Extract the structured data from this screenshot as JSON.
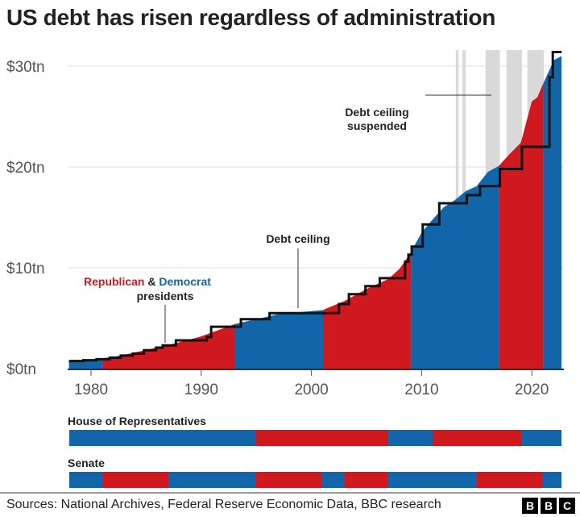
{
  "title": "US debt has risen regardless of administration",
  "chart_data": {
    "type": "area",
    "title": "US debt has risen regardless of administration",
    "ylabel": "",
    "xlabel": "",
    "xlim": [
      1978,
      2022.7
    ],
    "ylim": [
      0,
      30
    ],
    "grid": true,
    "y_ticks": [
      "$0tn",
      "$10tn",
      "$20tn",
      "$30tn"
    ],
    "y_tick_values": [
      0,
      10,
      20,
      30
    ],
    "x_ticks": [
      "1980",
      "1990",
      "2000",
      "2010",
      "2020"
    ],
    "x_tick_values": [
      1980,
      1990,
      2000,
      2010,
      2020
    ],
    "colors": {
      "Republican": "#d0181f",
      "Democrat": "#1165a8",
      "ceiling": "#111111",
      "suspended": "#d9d9d9"
    },
    "debt_series": {
      "x": [
        1978,
        1980,
        1982,
        1984,
        1986,
        1988,
        1990,
        1992,
        1993,
        1995,
        1997,
        1999,
        2001,
        2003,
        2005,
        2007,
        2008,
        2009,
        2010,
        2011,
        2012,
        2013,
        2014,
        2015,
        2016,
        2017,
        2018,
        2019,
        2020,
        2020.5,
        2021,
        2022,
        2022.7
      ],
      "y": [
        0.75,
        0.9,
        1.15,
        1.6,
        2.1,
        2.6,
        3.2,
        4.0,
        4.4,
        4.9,
        5.4,
        5.6,
        5.8,
        6.7,
        7.9,
        8.9,
        9.9,
        11.5,
        13.5,
        14.8,
        16.0,
        16.7,
        17.6,
        18.1,
        19.5,
        20.1,
        21.3,
        22.4,
        26.5,
        26.9,
        28.2,
        30.6,
        31.0
      ]
    },
    "presidents": [
      {
        "party": "Democrat",
        "start": 1978,
        "end": 1981.05
      },
      {
        "party": "Republican",
        "start": 1981.05,
        "end": 1993.05
      },
      {
        "party": "Democrat",
        "start": 1993.05,
        "end": 2001.05
      },
      {
        "party": "Republican",
        "start": 2001.05,
        "end": 2009.05
      },
      {
        "party": "Democrat",
        "start": 2009.05,
        "end": 2017.05
      },
      {
        "party": "Republican",
        "start": 2017.05,
        "end": 2021.05
      },
      {
        "party": "Democrat",
        "start": 2021.05,
        "end": 2022.7
      }
    ],
    "debt_ceiling": [
      [
        1978,
        0.75
      ],
      [
        1979.3,
        0.83
      ],
      [
        1980.5,
        0.93
      ],
      [
        1981.7,
        1.08
      ],
      [
        1982.7,
        1.29
      ],
      [
        1983.8,
        1.49
      ],
      [
        1984.8,
        1.82
      ],
      [
        1985.9,
        2.08
      ],
      [
        1986.5,
        2.3
      ],
      [
        1987.7,
        2.8
      ],
      [
        1990.5,
        3.12
      ],
      [
        1990.9,
        4.15
      ],
      [
        1993.6,
        4.9
      ],
      [
        1996.2,
        5.5
      ],
      [
        2002.5,
        6.4
      ],
      [
        2003.4,
        7.38
      ],
      [
        2004.9,
        8.18
      ],
      [
        2006.2,
        8.97
      ],
      [
        2008.5,
        10.6
      ],
      [
        2008.8,
        11.3
      ],
      [
        2009.1,
        12.1
      ],
      [
        2010.1,
        14.3
      ],
      [
        2011.6,
        16.4
      ],
      [
        2014.1,
        17.2
      ],
      [
        2015.3,
        18.1
      ],
      [
        2017.1,
        19.8
      ],
      [
        2019.1,
        22.0
      ],
      [
        2021.6,
        28.9
      ],
      [
        2021.9,
        31.4
      ],
      [
        2022.7,
        31.4
      ]
    ],
    "suspended_periods": [
      [
        2013.1,
        2013.35
      ],
      [
        2013.7,
        2014.0
      ],
      [
        2015.8,
        2017.1
      ],
      [
        2017.7,
        2019.1
      ],
      [
        2019.6,
        2021.1
      ]
    ],
    "annotations": {
      "suspended": [
        "Debt ceiling",
        "suspended"
      ],
      "ceiling": "Debt ceiling",
      "republican": "Republican",
      "amp": "&",
      "democrat": "Democrat",
      "presidents": "presidents"
    }
  },
  "house": {
    "label": "House of Representatives",
    "segments": [
      {
        "party": "Democrat",
        "start": 1978,
        "end": 1995
      },
      {
        "party": "Republican",
        "start": 1995,
        "end": 2007
      },
      {
        "party": "Democrat",
        "start": 2007,
        "end": 2011
      },
      {
        "party": "Republican",
        "start": 2011,
        "end": 2019
      },
      {
        "party": "Democrat",
        "start": 2019,
        "end": 2022.7
      }
    ]
  },
  "senate": {
    "label": "Senate",
    "segments": [
      {
        "party": "Democrat",
        "start": 1978,
        "end": 1981
      },
      {
        "party": "Republican",
        "start": 1981,
        "end": 1987
      },
      {
        "party": "Democrat",
        "start": 1987,
        "end": 1995
      },
      {
        "party": "Republican",
        "start": 1995,
        "end": 2001
      },
      {
        "party": "Democrat",
        "start": 2001,
        "end": 2003
      },
      {
        "party": "Republican",
        "start": 2003,
        "end": 2007
      },
      {
        "party": "Democrat",
        "start": 2007,
        "end": 2015
      },
      {
        "party": "Republican",
        "start": 2015,
        "end": 2021
      },
      {
        "party": "Democrat",
        "start": 2021,
        "end": 2022.7
      }
    ]
  },
  "footer": {
    "sources": "Sources: National Archives, Federal Reserve Economic Data, BBC research",
    "logo": [
      "B",
      "B",
      "C"
    ]
  }
}
